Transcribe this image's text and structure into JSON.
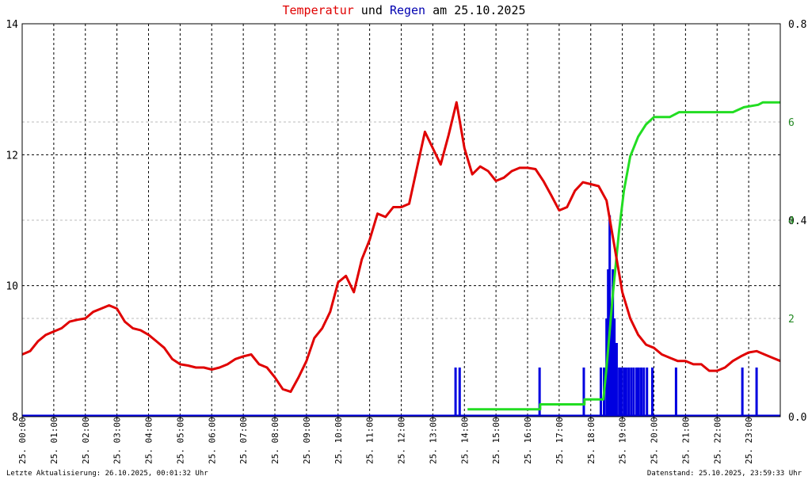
{
  "title": {
    "part1": "Temperatur",
    "part2": " und ",
    "part3": "Regen",
    "part4": " am 25.10.2025"
  },
  "footer": {
    "left": "Letzte Aktualisierung: 26.10.2025, 00:01:32 Uhr",
    "right": "Datenstand: 25.10.2025, 23:59:33 Uhr"
  },
  "colors": {
    "temperature": "#e00000",
    "rain_rate": "#0000e0",
    "rain_sum": "#22dd22",
    "grid": "#000000",
    "minor_grid": "#bbbbbb"
  },
  "chart_data": {
    "type": "line",
    "grid": true,
    "x_range": [
      0,
      24
    ],
    "x_ticks": [
      {
        "x": 0,
        "l1": "25.",
        "l2": "00:00"
      },
      {
        "x": 1,
        "l1": "25.",
        "l2": "01:00"
      },
      {
        "x": 2,
        "l1": "25.",
        "l2": "02:00"
      },
      {
        "x": 3,
        "l1": "25.",
        "l2": "03:00"
      },
      {
        "x": 4,
        "l1": "25.",
        "l2": "04:00"
      },
      {
        "x": 5,
        "l1": "25.",
        "l2": "05:00"
      },
      {
        "x": 6,
        "l1": "25.",
        "l2": "06:00"
      },
      {
        "x": 7,
        "l1": "25.",
        "l2": "07:00"
      },
      {
        "x": 8,
        "l1": "25.",
        "l2": "08:00"
      },
      {
        "x": 9,
        "l1": "25.",
        "l2": "09:00"
      },
      {
        "x": 10,
        "l1": "25.",
        "l2": "10:00"
      },
      {
        "x": 11,
        "l1": "25.",
        "l2": "11:00"
      },
      {
        "x": 12,
        "l1": "25.",
        "l2": "12:00"
      },
      {
        "x": 13,
        "l1": "25.",
        "l2": "13:00"
      },
      {
        "x": 14,
        "l1": "25.",
        "l2": "14:00"
      },
      {
        "x": 15,
        "l1": "25.",
        "l2": "15:00"
      },
      {
        "x": 16,
        "l1": "25.",
        "l2": "16:00"
      },
      {
        "x": 17,
        "l1": "25.",
        "l2": "17:00"
      },
      {
        "x": 18,
        "l1": "25.",
        "l2": "18:00"
      },
      {
        "x": 19,
        "l1": "25.",
        "l2": "19:00"
      },
      {
        "x": 20,
        "l1": "25.",
        "l2": "20:00"
      },
      {
        "x": 21,
        "l1": "25.",
        "l2": "21:00"
      },
      {
        "x": 22,
        "l1": "25.",
        "l2": "22:00"
      },
      {
        "x": 23,
        "l1": "25.",
        "l2": "23:00"
      }
    ],
    "y_left": {
      "range": [
        8,
        14
      ],
      "ticks": [
        "8",
        "10",
        "12",
        "14"
      ],
      "tick_values": [
        8,
        10,
        12,
        14
      ]
    },
    "y_right_rate": {
      "range": [
        0,
        0.8
      ],
      "ticks": [
        "0.0",
        "0.4",
        "0.8"
      ],
      "tick_values": [
        0,
        0.4,
        0.8
      ]
    },
    "y_right_sum": {
      "range": [
        0,
        8
      ],
      "ticks": [
        "2",
        "4",
        "6"
      ],
      "tick_values": [
        2,
        4,
        6
      ]
    },
    "series": [
      {
        "key": "temperature",
        "axis": "left",
        "points": [
          [
            0,
            8.95
          ],
          [
            0.25,
            9.0
          ],
          [
            0.5,
            9.15
          ],
          [
            0.75,
            9.25
          ],
          [
            1.0,
            9.3
          ],
          [
            1.25,
            9.35
          ],
          [
            1.5,
            9.45
          ],
          [
            1.75,
            9.48
          ],
          [
            2.0,
            9.5
          ],
          [
            2.25,
            9.6
          ],
          [
            2.5,
            9.65
          ],
          [
            2.75,
            9.7
          ],
          [
            3.0,
            9.65
          ],
          [
            3.25,
            9.45
          ],
          [
            3.5,
            9.35
          ],
          [
            3.75,
            9.32
          ],
          [
            4.0,
            9.25
          ],
          [
            4.25,
            9.15
          ],
          [
            4.5,
            9.05
          ],
          [
            4.75,
            8.88
          ],
          [
            5.0,
            8.8
          ],
          [
            5.25,
            8.78
          ],
          [
            5.5,
            8.75
          ],
          [
            5.75,
            8.75
          ],
          [
            6.0,
            8.72
          ],
          [
            6.25,
            8.75
          ],
          [
            6.5,
            8.8
          ],
          [
            6.75,
            8.88
          ],
          [
            7.0,
            8.92
          ],
          [
            7.25,
            8.95
          ],
          [
            7.5,
            8.8
          ],
          [
            7.75,
            8.75
          ],
          [
            8.0,
            8.6
          ],
          [
            8.25,
            8.42
          ],
          [
            8.5,
            8.38
          ],
          [
            8.75,
            8.6
          ],
          [
            9.0,
            8.85
          ],
          [
            9.25,
            9.2
          ],
          [
            9.5,
            9.35
          ],
          [
            9.75,
            9.6
          ],
          [
            10.0,
            10.05
          ],
          [
            10.25,
            10.15
          ],
          [
            10.5,
            9.9
          ],
          [
            10.75,
            10.4
          ],
          [
            11.0,
            10.7
          ],
          [
            11.25,
            11.1
          ],
          [
            11.5,
            11.05
          ],
          [
            11.75,
            11.2
          ],
          [
            12.0,
            11.2
          ],
          [
            12.25,
            11.25
          ],
          [
            12.5,
            11.8
          ],
          [
            12.75,
            12.35
          ],
          [
            13.0,
            12.1
          ],
          [
            13.25,
            11.85
          ],
          [
            13.5,
            12.3
          ],
          [
            13.75,
            12.8
          ],
          [
            14.0,
            12.1
          ],
          [
            14.25,
            11.7
          ],
          [
            14.5,
            11.82
          ],
          [
            14.75,
            11.75
          ],
          [
            15.0,
            11.6
          ],
          [
            15.25,
            11.65
          ],
          [
            15.5,
            11.75
          ],
          [
            15.75,
            11.8
          ],
          [
            16.0,
            11.8
          ],
          [
            16.25,
            11.78
          ],
          [
            16.5,
            11.6
          ],
          [
            16.75,
            11.38
          ],
          [
            17.0,
            11.15
          ],
          [
            17.25,
            11.2
          ],
          [
            17.5,
            11.45
          ],
          [
            17.75,
            11.58
          ],
          [
            18.0,
            11.55
          ],
          [
            18.25,
            11.52
          ],
          [
            18.5,
            11.3
          ],
          [
            18.75,
            10.6
          ],
          [
            19.0,
            9.9
          ],
          [
            19.25,
            9.5
          ],
          [
            19.5,
            9.25
          ],
          [
            19.75,
            9.1
          ],
          [
            20.0,
            9.05
          ],
          [
            20.25,
            8.95
          ],
          [
            20.5,
            8.9
          ],
          [
            20.75,
            8.85
          ],
          [
            21.0,
            8.85
          ],
          [
            21.25,
            8.8
          ],
          [
            21.5,
            8.8
          ],
          [
            21.75,
            8.7
          ],
          [
            22.0,
            8.7
          ],
          [
            22.25,
            8.75
          ],
          [
            22.5,
            8.85
          ],
          [
            22.75,
            8.92
          ],
          [
            23.0,
            8.98
          ],
          [
            23.25,
            9.0
          ],
          [
            23.5,
            8.95
          ],
          [
            23.75,
            8.9
          ],
          [
            24.0,
            8.85
          ]
        ]
      },
      {
        "key": "rain_sum",
        "axis": "right_sum",
        "points": [
          [
            14.1,
            0.15
          ],
          [
            16.4,
            0.15
          ],
          [
            16.4,
            0.25
          ],
          [
            17.8,
            0.25
          ],
          [
            17.8,
            0.35
          ],
          [
            18.4,
            0.35
          ],
          [
            18.5,
            1.0
          ],
          [
            18.7,
            2.5
          ],
          [
            18.9,
            3.8
          ],
          [
            19.05,
            4.6
          ],
          [
            19.25,
            5.3
          ],
          [
            19.5,
            5.7
          ],
          [
            19.75,
            5.95
          ],
          [
            20.0,
            6.1
          ],
          [
            20.5,
            6.1
          ],
          [
            20.8,
            6.2
          ],
          [
            21.3,
            6.2
          ],
          [
            22.5,
            6.2
          ],
          [
            22.85,
            6.3
          ],
          [
            23.3,
            6.35
          ],
          [
            23.45,
            6.4
          ],
          [
            24.0,
            6.4
          ]
        ]
      },
      {
        "key": "rain_rate",
        "axis": "right_rate",
        "bars": [
          [
            13.72,
            0.1
          ],
          [
            13.85,
            0.1
          ],
          [
            16.38,
            0.1
          ],
          [
            17.78,
            0.1
          ],
          [
            18.32,
            0.1
          ],
          [
            18.42,
            0.1
          ],
          [
            18.5,
            0.2
          ],
          [
            18.55,
            0.3
          ],
          [
            18.6,
            0.41
          ],
          [
            18.65,
            0.2
          ],
          [
            18.7,
            0.3
          ],
          [
            18.75,
            0.2
          ],
          [
            18.82,
            0.15
          ],
          [
            18.9,
            0.1
          ],
          [
            18.97,
            0.1
          ],
          [
            19.05,
            0.1
          ],
          [
            19.12,
            0.1
          ],
          [
            19.2,
            0.1
          ],
          [
            19.28,
            0.1
          ],
          [
            19.36,
            0.1
          ],
          [
            19.45,
            0.1
          ],
          [
            19.52,
            0.1
          ],
          [
            19.6,
            0.1
          ],
          [
            19.68,
            0.1
          ],
          [
            19.78,
            0.1
          ],
          [
            19.95,
            0.1
          ],
          [
            20.7,
            0.1
          ],
          [
            22.8,
            0.1
          ],
          [
            23.25,
            0.1
          ]
        ]
      }
    ]
  }
}
